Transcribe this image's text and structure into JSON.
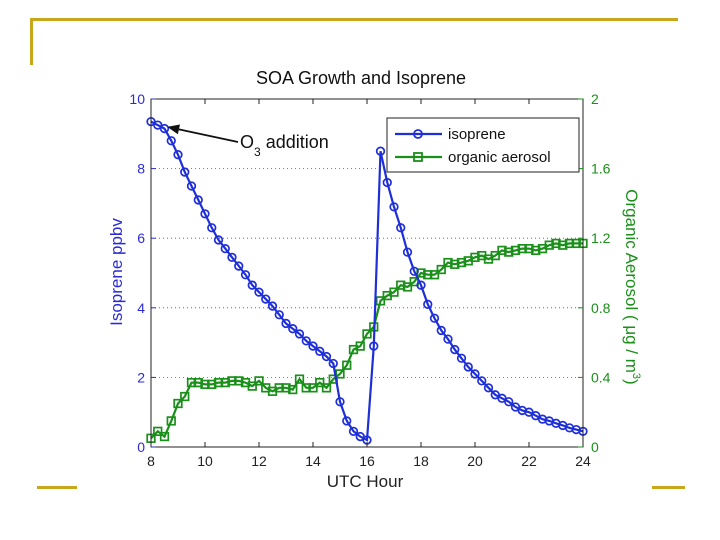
{
  "slide": {
    "frame_color": "#c8a71a"
  },
  "chart_data": {
    "type": "line",
    "title": "SOA Growth and Isoprene",
    "xlabel": "UTC Hour",
    "ylabel_left": "Isoprene ppbv",
    "ylabel_right_parts": [
      "Organic Aerosol ( ",
      "μg / m",
      "3",
      ")"
    ],
    "xlim": [
      8,
      24
    ],
    "ylim_left": [
      0,
      10
    ],
    "ylim_right": [
      0,
      2
    ],
    "x_ticks": [
      8,
      10,
      12,
      14,
      16,
      18,
      20,
      22,
      24
    ],
    "y_left_ticks": [
      0,
      2,
      4,
      6,
      8,
      10
    ],
    "y_right_ticks": [
      "0",
      "0.4",
      "0.8",
      "1.2",
      "1.6",
      "2"
    ],
    "grid": "dotted horizontal",
    "legend_position": "top-right",
    "annotation": {
      "text_main": "O",
      "text_sub": "3",
      "text_rest": " addition",
      "target_x": 8.6,
      "target_y": 9.2
    },
    "colors": {
      "isoprene": "#1f2fd8",
      "organic_aerosol": "#1a8f1a",
      "left_axis": "#2b2bd6",
      "right_axis": "#1a8f1a"
    },
    "series": [
      {
        "name": "isoprene",
        "axis": "left",
        "marker": "circle",
        "x": [
          8.0,
          8.25,
          8.5,
          8.75,
          9.0,
          9.25,
          9.5,
          9.75,
          10.0,
          10.25,
          10.5,
          10.75,
          11.0,
          11.25,
          11.5,
          11.75,
          12.0,
          12.25,
          12.5,
          12.75,
          13.0,
          13.25,
          13.5,
          13.75,
          14.0,
          14.25,
          14.5,
          14.75,
          15.0,
          15.25,
          15.5,
          15.75,
          16.0,
          16.25,
          16.5,
          16.75,
          17.0,
          17.25,
          17.5,
          17.75,
          18.0,
          18.25,
          18.5,
          18.75,
          19.0,
          19.25,
          19.5,
          19.75,
          20.0,
          20.25,
          20.5,
          20.75,
          21.0,
          21.25,
          21.5,
          21.75,
          22.0,
          22.25,
          22.5,
          22.75,
          23.0,
          23.25,
          23.5,
          23.75,
          24.0
        ],
        "values": [
          9.35,
          9.25,
          9.15,
          8.8,
          8.4,
          7.9,
          7.5,
          7.1,
          6.7,
          6.3,
          5.95,
          5.7,
          5.45,
          5.2,
          4.95,
          4.65,
          4.45,
          4.25,
          4.05,
          3.8,
          3.55,
          3.4,
          3.25,
          3.05,
          2.9,
          2.75,
          2.6,
          2.4,
          1.3,
          0.75,
          0.45,
          0.3,
          0.2,
          2.9,
          8.5,
          7.6,
          6.9,
          6.3,
          5.6,
          5.05,
          4.65,
          4.1,
          3.7,
          3.35,
          3.1,
          2.8,
          2.55,
          2.3,
          2.1,
          1.9,
          1.7,
          1.5,
          1.4,
          1.3,
          1.15,
          1.05,
          1.0,
          0.9,
          0.8,
          0.75,
          0.68,
          0.62,
          0.55,
          0.5,
          0.45
        ]
      },
      {
        "name": "organic aerosol",
        "axis": "right",
        "marker": "square",
        "x": [
          8.0,
          8.25,
          8.5,
          8.75,
          9.0,
          9.25,
          9.5,
          9.75,
          10.0,
          10.25,
          10.5,
          10.75,
          11.0,
          11.25,
          11.5,
          11.75,
          12.0,
          12.25,
          12.5,
          12.75,
          13.0,
          13.25,
          13.5,
          13.75,
          14.0,
          14.25,
          14.5,
          14.75,
          15.0,
          15.25,
          15.5,
          15.75,
          16.0,
          16.25,
          16.5,
          16.75,
          17.0,
          17.25,
          17.5,
          17.75,
          18.0,
          18.25,
          18.5,
          18.75,
          19.0,
          19.25,
          19.5,
          19.75,
          20.0,
          20.25,
          20.5,
          20.75,
          21.0,
          21.25,
          21.5,
          21.75,
          22.0,
          22.25,
          22.5,
          22.75,
          23.0,
          23.25,
          23.5,
          23.75,
          24.0
        ],
        "values": [
          0.05,
          0.09,
          0.06,
          0.15,
          0.25,
          0.29,
          0.37,
          0.37,
          0.36,
          0.36,
          0.37,
          0.37,
          0.38,
          0.38,
          0.37,
          0.35,
          0.38,
          0.34,
          0.32,
          0.34,
          0.34,
          0.33,
          0.39,
          0.34,
          0.34,
          0.37,
          0.34,
          0.39,
          0.42,
          0.47,
          0.56,
          0.58,
          0.65,
          0.69,
          0.84,
          0.87,
          0.89,
          0.93,
          0.92,
          0.95,
          1.0,
          0.99,
          0.99,
          1.02,
          1.06,
          1.05,
          1.06,
          1.07,
          1.09,
          1.1,
          1.08,
          1.1,
          1.13,
          1.12,
          1.13,
          1.14,
          1.14,
          1.13,
          1.14,
          1.16,
          1.17,
          1.16,
          1.17,
          1.17,
          1.17
        ]
      }
    ]
  }
}
